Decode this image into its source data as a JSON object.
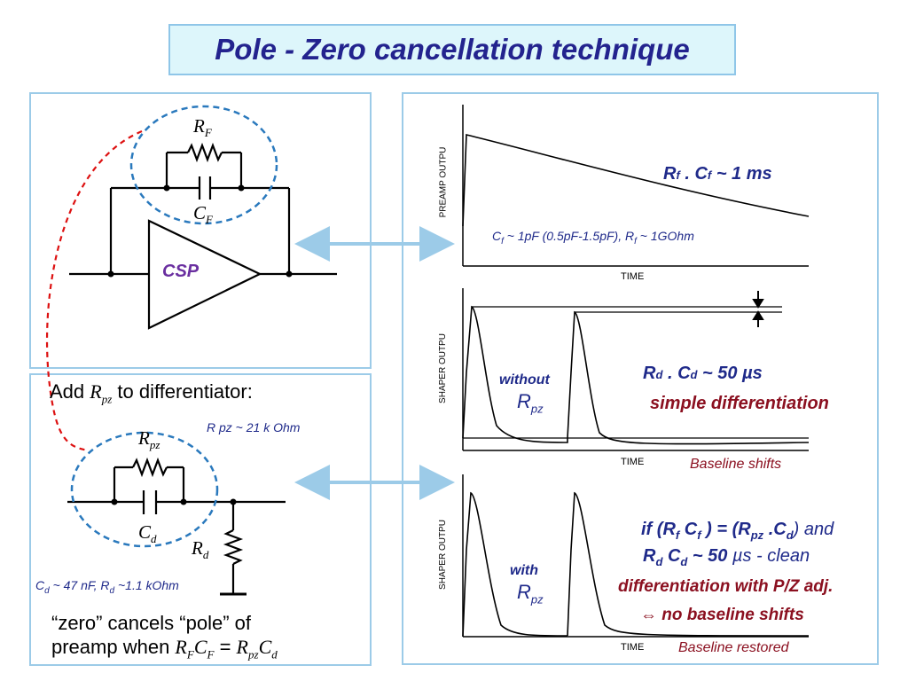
{
  "title": "Pole - Zero  cancellation  technique",
  "colors": {
    "title_text": "#23238e",
    "title_bg": "#ddf6fb",
    "border": "#9ccbe8",
    "dashed_circle": "#2a79bd",
    "dashed_link": "#dd1111",
    "dark_blue": "#1f2a8a",
    "dark_red": "#8b1020",
    "purple": "#6a2fa0"
  },
  "circuit_top": {
    "rf_label": "R",
    "rf_sub": "F",
    "cf_label": "C",
    "cf_sub": "F",
    "csp_label": "CSP"
  },
  "circuit_bottom": {
    "add_prefix": "Add ",
    "add_r": "R",
    "add_r_sub": "pz",
    "add_suffix": " to differentiator:",
    "rpz_value": "R pz ~ 21 k Ohm",
    "rpz_label": "R",
    "rpz_sub": "pz",
    "cd_label": "C",
    "cd_sub": "d",
    "rd_label": "R",
    "rd_sub": "d",
    "cd_rd_value_c": "C",
    "cd_rd_value_c_sub": "d",
    "cd_rd_value_mid": " ~ 47 nF, R",
    "cd_rd_value_r_sub": "d",
    "cd_rd_value_end": " ~1.1 kOhm",
    "zero_line1": "“zero” cancels “pole” of",
    "zero_line2_prefix": "preamp when ",
    "zero_rf": "R",
    "zero_rf_sub": "F",
    "zero_cf": "C",
    "zero_cf_sub": "F",
    "zero_eq": "  = ",
    "zero_rpz": "R",
    "zero_rpz_sub": "pz",
    "zero_cd": "C",
    "zero_cd_sub": "d"
  },
  "plot_preamp": {
    "ylabel": "PREAMP OUTPU",
    "xlabel": "TIME",
    "tau_r": "R",
    "tau_r_sub": "f",
    "tau_dot": " . C",
    "tau_c_sub": "f",
    "tau_value": "  ~  1 ms",
    "cf_note": "C",
    "cf_note_sub": "f",
    "cf_note_mid": " ~ 1pF (0.5pF-1.5pF), R",
    "rf_note_sub": "f",
    "rf_note_end": " ~ 1GOhm"
  },
  "plot_shaper1": {
    "ylabel": "SHAPER OUTPU",
    "xlabel": "TIME",
    "without": "without",
    "r": "R",
    "r_sub": "pz",
    "tau_r": "R",
    "tau_r_sub": "d",
    "tau_dot": " . C",
    "tau_c_sub": "d",
    "tau_value": "  ~  50 µs",
    "simple": "simple differentiation",
    "baseline": "Baseline shifts"
  },
  "plot_shaper2": {
    "ylabel": "SHAPER OUTPU",
    "xlabel": "TIME",
    "with": "with",
    "r": "R",
    "r_sub": "pz",
    "cond_if": "if  (",
    "cond_rf": "R",
    "cond_rf_sub": "f",
    "cond_cf": " C",
    "cond_cf_sub": "f",
    "cond_mid": " ) = (",
    "cond_rpz": "R",
    "cond_rpz_sub": "pz",
    "cond_cd": " .C",
    "cond_cd_sub": "d",
    "cond_end": ") and",
    "line2_r": "R",
    "line2_r_sub": "d",
    "line2_c": " C",
    "line2_c_sub": "d",
    "line2_val": " ~ 50 ",
    "line2_unit": "µs - clean",
    "line3": "differentiation with P/Z adj.",
    "line4": "⇔ no baseline shifts",
    "baseline": "Baseline restored"
  }
}
